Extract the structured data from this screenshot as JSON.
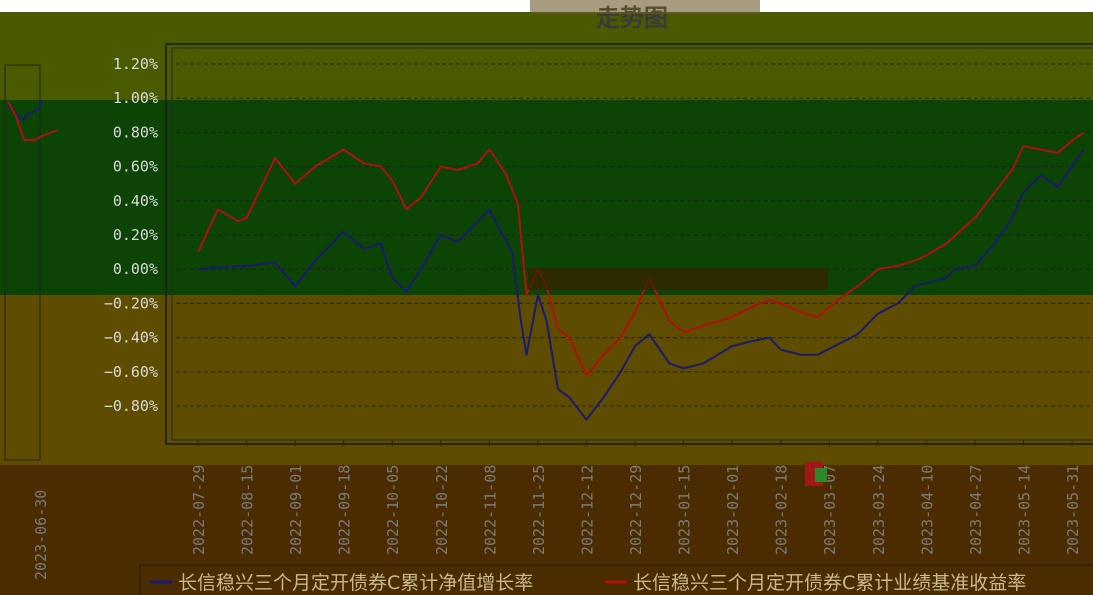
{
  "chart_data": {
    "type": "line",
    "title": "走势图",
    "y_ticks": [
      "1.20%",
      "1.00%",
      "0.80%",
      "0.60%",
      "0.40%",
      "0.20%",
      "0.00%",
      "−0.20%",
      "−0.40%",
      "−0.60%",
      "−0.80%"
    ],
    "ylim": [
      -0.9,
      1.3
    ],
    "x_ticks": [
      "2022-07-29",
      "2022-08-15",
      "2022-09-01",
      "2022-09-18",
      "2022-10-05",
      "2022-10-22",
      "2022-11-08",
      "2022-11-25",
      "2022-12-12",
      "2022-12-29",
      "2023-01-15",
      "2023-02-01",
      "2023-02-18",
      "2023-03-07",
      "2023-03-24",
      "2023-04-10",
      "2023-04-27",
      "2023-05-14",
      "2023-05-31"
    ],
    "inset_x_tick": "2023-06-30",
    "grid": true,
    "legend_position": "bottom",
    "series": [
      {
        "name": "长信稳兴三个月定开债券C累计净值增长率",
        "color": "#1a1a6e",
        "points": [
          [
            "2022-07-29",
            0.0
          ],
          [
            "2022-08-05",
            0.01
          ],
          [
            "2022-08-15",
            0.02
          ],
          [
            "2022-08-25",
            0.04
          ],
          [
            "2022-09-01",
            -0.1
          ],
          [
            "2022-09-08",
            0.05
          ],
          [
            "2022-09-18",
            0.22
          ],
          [
            "2022-09-25",
            0.12
          ],
          [
            "2022-10-01",
            0.15
          ],
          [
            "2022-10-05",
            -0.05
          ],
          [
            "2022-10-10",
            -0.13
          ],
          [
            "2022-10-15",
            0.0
          ],
          [
            "2022-10-22",
            0.2
          ],
          [
            "2022-10-28",
            0.16
          ],
          [
            "2022-11-04",
            0.28
          ],
          [
            "2022-11-08",
            0.35
          ],
          [
            "2022-11-12",
            0.22
          ],
          [
            "2022-11-16",
            0.1
          ],
          [
            "2022-11-19",
            -0.3
          ],
          [
            "2022-11-21",
            -0.5
          ],
          [
            "2022-11-25",
            -0.15
          ],
          [
            "2022-11-28",
            -0.3
          ],
          [
            "2022-12-02",
            -0.7
          ],
          [
            "2022-12-06",
            -0.75
          ],
          [
            "2022-12-12",
            -0.88
          ],
          [
            "2022-12-18",
            -0.75
          ],
          [
            "2022-12-24",
            -0.6
          ],
          [
            "2022-12-29",
            -0.45
          ],
          [
            "2023-01-03",
            -0.38
          ],
          [
            "2023-01-10",
            -0.55
          ],
          [
            "2023-01-15",
            -0.58
          ],
          [
            "2023-01-22",
            -0.55
          ],
          [
            "2023-02-01",
            -0.45
          ],
          [
            "2023-02-08",
            -0.42
          ],
          [
            "2023-02-14",
            -0.4
          ],
          [
            "2023-02-18",
            -0.47
          ],
          [
            "2023-02-25",
            -0.5
          ],
          [
            "2023-03-03",
            -0.5
          ],
          [
            "2023-03-10",
            -0.44
          ],
          [
            "2023-03-17",
            -0.38
          ],
          [
            "2023-03-24",
            -0.26
          ],
          [
            "2023-03-31",
            -0.2
          ],
          [
            "2023-04-06",
            -0.1
          ],
          [
            "2023-04-10",
            -0.08
          ],
          [
            "2023-04-17",
            -0.05
          ],
          [
            "2023-04-20",
            0.0
          ],
          [
            "2023-04-27",
            0.02
          ],
          [
            "2023-05-04",
            0.15
          ],
          [
            "2023-05-10",
            0.3
          ],
          [
            "2023-05-14",
            0.45
          ],
          [
            "2023-05-20",
            0.55
          ],
          [
            "2023-05-26",
            0.48
          ],
          [
            "2023-05-31",
            0.6
          ],
          [
            "2023-06-04",
            0.7
          ]
        ]
      },
      {
        "name": "长信稳兴三个月定开债券C累计业绩基准收益率",
        "color": "#b01010",
        "points": [
          [
            "2022-07-29",
            0.1
          ],
          [
            "2022-08-05",
            0.35
          ],
          [
            "2022-08-12",
            0.28
          ],
          [
            "2022-08-15",
            0.3
          ],
          [
            "2022-08-25",
            0.65
          ],
          [
            "2022-09-01",
            0.5
          ],
          [
            "2022-09-08",
            0.6
          ],
          [
            "2022-09-18",
            0.7
          ],
          [
            "2022-09-25",
            0.62
          ],
          [
            "2022-10-01",
            0.6
          ],
          [
            "2022-10-05",
            0.52
          ],
          [
            "2022-10-10",
            0.35
          ],
          [
            "2022-10-15",
            0.42
          ],
          [
            "2022-10-22",
            0.6
          ],
          [
            "2022-10-28",
            0.58
          ],
          [
            "2022-11-04",
            0.62
          ],
          [
            "2022-11-08",
            0.7
          ],
          [
            "2022-11-14",
            0.55
          ],
          [
            "2022-11-18",
            0.38
          ],
          [
            "2022-11-21",
            -0.15
          ],
          [
            "2022-11-25",
            0.0
          ],
          [
            "2022-11-28",
            -0.1
          ],
          [
            "2022-12-02",
            -0.35
          ],
          [
            "2022-12-06",
            -0.4
          ],
          [
            "2022-12-12",
            -0.62
          ],
          [
            "2022-12-18",
            -0.5
          ],
          [
            "2022-12-24",
            -0.4
          ],
          [
            "2022-12-29",
            -0.25
          ],
          [
            "2023-01-03",
            -0.05
          ],
          [
            "2023-01-10",
            -0.3
          ],
          [
            "2023-01-15",
            -0.37
          ],
          [
            "2023-01-22",
            -0.33
          ],
          [
            "2023-02-01",
            -0.28
          ],
          [
            "2023-02-08",
            -0.22
          ],
          [
            "2023-02-14",
            -0.18
          ],
          [
            "2023-02-18",
            -0.2
          ],
          [
            "2023-02-25",
            -0.25
          ],
          [
            "2023-03-03",
            -0.28
          ],
          [
            "2023-03-10",
            -0.18
          ],
          [
            "2023-03-17",
            -0.1
          ],
          [
            "2023-03-24",
            0.0
          ],
          [
            "2023-03-31",
            0.02
          ],
          [
            "2023-04-06",
            0.05
          ],
          [
            "2023-04-10",
            0.08
          ],
          [
            "2023-04-17",
            0.15
          ],
          [
            "2023-04-27",
            0.3
          ],
          [
            "2023-05-04",
            0.45
          ],
          [
            "2023-05-10",
            0.58
          ],
          [
            "2023-05-14",
            0.72
          ],
          [
            "2023-05-20",
            0.7
          ],
          [
            "2023-05-26",
            0.68
          ],
          [
            "2023-05-31",
            0.75
          ],
          [
            "2023-06-04",
            0.8
          ]
        ]
      }
    ]
  }
}
